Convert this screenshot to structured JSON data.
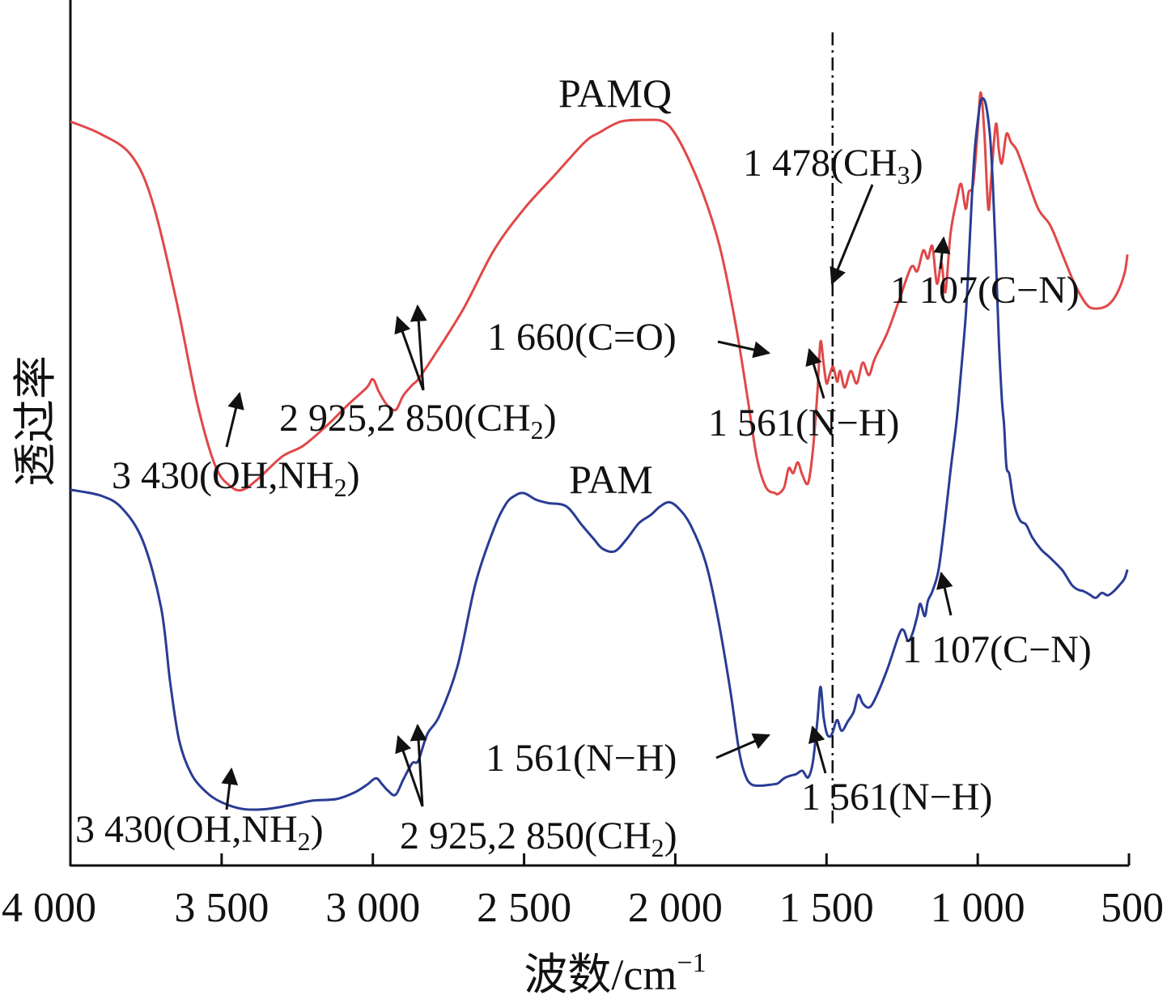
{
  "chart_data": {
    "type": "line",
    "xlabel": "波数/cm",
    "xlabel_sup": "−1",
    "ylabel": "透过率",
    "xlim": [
      4000,
      500
    ],
    "x_ticks": [
      "4 000",
      "3 500",
      "3 000",
      "2 500",
      "2 000",
      "1 500",
      "1 000",
      "500"
    ],
    "x_tick_values": [
      4000,
      3500,
      3000,
      2500,
      2000,
      1500,
      1000,
      500
    ],
    "y_ticks_shown": false,
    "reference_line_x": 1480,
    "series": [
      {
        "name": "PAMQ",
        "color": "#e04848",
        "points": [
          [
            4000,
            0.895
          ],
          [
            3900,
            0.88
          ],
          [
            3800,
            0.855
          ],
          [
            3730,
            0.8
          ],
          [
            3650,
            0.68
          ],
          [
            3580,
            0.555
          ],
          [
            3520,
            0.48
          ],
          [
            3470,
            0.456
          ],
          [
            3430,
            0.452
          ],
          [
            3380,
            0.465
          ],
          [
            3300,
            0.492
          ],
          [
            3230,
            0.505
          ],
          [
            3150,
            0.53
          ],
          [
            3080,
            0.555
          ],
          [
            3020,
            0.575
          ],
          [
            3000,
            0.585
          ],
          [
            2980,
            0.57
          ],
          [
            2955,
            0.555
          ],
          [
            2925,
            0.548
          ],
          [
            2900,
            0.565
          ],
          [
            2870,
            0.578
          ],
          [
            2850,
            0.585
          ],
          [
            2800,
            0.612
          ],
          [
            2700,
            0.67
          ],
          [
            2600,
            0.74
          ],
          [
            2500,
            0.79
          ],
          [
            2400,
            0.83
          ],
          [
            2300,
            0.87
          ],
          [
            2250,
            0.882
          ],
          [
            2180,
            0.895
          ],
          [
            2100,
            0.897
          ],
          [
            2040,
            0.895
          ],
          [
            2000,
            0.88
          ],
          [
            1950,
            0.845
          ],
          [
            1900,
            0.8
          ],
          [
            1850,
            0.74
          ],
          [
            1800,
            0.65
          ],
          [
            1760,
            0.56
          ],
          [
            1730,
            0.49
          ],
          [
            1700,
            0.455
          ],
          [
            1670,
            0.448
          ],
          [
            1660,
            0.447
          ],
          [
            1640,
            0.455
          ],
          [
            1625,
            0.478
          ],
          [
            1610,
            0.472
          ],
          [
            1595,
            0.485
          ],
          [
            1580,
            0.47
          ],
          [
            1561,
            0.46
          ],
          [
            1545,
            0.5
          ],
          [
            1530,
            0.57
          ],
          [
            1520,
            0.63
          ],
          [
            1510,
            0.605
          ],
          [
            1500,
            0.58
          ],
          [
            1490,
            0.59
          ],
          [
            1478,
            0.6
          ],
          [
            1465,
            0.582
          ],
          [
            1455,
            0.595
          ],
          [
            1440,
            0.575
          ],
          [
            1420,
            0.595
          ],
          [
            1400,
            0.58
          ],
          [
            1380,
            0.605
          ],
          [
            1360,
            0.59
          ],
          [
            1340,
            0.61
          ],
          [
            1300,
            0.64
          ],
          [
            1260,
            0.68
          ],
          [
            1220,
            0.72
          ],
          [
            1200,
            0.715
          ],
          [
            1180,
            0.74
          ],
          [
            1165,
            0.73
          ],
          [
            1150,
            0.745
          ],
          [
            1135,
            0.7
          ],
          [
            1120,
            0.725
          ],
          [
            1107,
            0.69
          ],
          [
            1090,
            0.76
          ],
          [
            1070,
            0.8
          ],
          [
            1055,
            0.82
          ],
          [
            1040,
            0.79
          ],
          [
            1030,
            0.81
          ],
          [
            1015,
            0.82
          ],
          [
            1000,
            0.885
          ],
          [
            990,
            0.93
          ],
          [
            978,
            0.88
          ],
          [
            965,
            0.79
          ],
          [
            955,
            0.83
          ],
          [
            940,
            0.892
          ],
          [
            930,
            0.86
          ],
          [
            920,
            0.845
          ],
          [
            905,
            0.88
          ],
          [
            890,
            0.87
          ],
          [
            870,
            0.86
          ],
          [
            840,
            0.83
          ],
          [
            800,
            0.79
          ],
          [
            760,
            0.77
          ],
          [
            720,
            0.735
          ],
          [
            680,
            0.7
          ],
          [
            640,
            0.675
          ],
          [
            610,
            0.67
          ],
          [
            570,
            0.674
          ],
          [
            540,
            0.688
          ],
          [
            515,
            0.712
          ],
          [
            505,
            0.735
          ]
        ]
      },
      {
        "name": "PAM",
        "color": "#2a3c94",
        "points": [
          [
            4000,
            0.452
          ],
          [
            3900,
            0.445
          ],
          [
            3830,
            0.43
          ],
          [
            3760,
            0.39
          ],
          [
            3700,
            0.31
          ],
          [
            3670,
            0.22
          ],
          [
            3640,
            0.15
          ],
          [
            3600,
            0.11
          ],
          [
            3550,
            0.088
          ],
          [
            3500,
            0.076
          ],
          [
            3430,
            0.068
          ],
          [
            3350,
            0.068
          ],
          [
            3270,
            0.073
          ],
          [
            3200,
            0.078
          ],
          [
            3120,
            0.08
          ],
          [
            3060,
            0.088
          ],
          [
            3020,
            0.097
          ],
          [
            2990,
            0.105
          ],
          [
            2970,
            0.098
          ],
          [
            2950,
            0.09
          ],
          [
            2925,
            0.085
          ],
          [
            2900,
            0.103
          ],
          [
            2870,
            0.123
          ],
          [
            2850,
            0.126
          ],
          [
            2820,
            0.158
          ],
          [
            2780,
            0.18
          ],
          [
            2720,
            0.24
          ],
          [
            2660,
            0.34
          ],
          [
            2600,
            0.405
          ],
          [
            2560,
            0.435
          ],
          [
            2530,
            0.445
          ],
          [
            2500,
            0.448
          ],
          [
            2460,
            0.44
          ],
          [
            2420,
            0.436
          ],
          [
            2360,
            0.432
          ],
          [
            2310,
            0.41
          ],
          [
            2270,
            0.393
          ],
          [
            2240,
            0.381
          ],
          [
            2200,
            0.378
          ],
          [
            2160,
            0.393
          ],
          [
            2120,
            0.412
          ],
          [
            2080,
            0.422
          ],
          [
            2050,
            0.432
          ],
          [
            2020,
            0.437
          ],
          [
            1990,
            0.43
          ],
          [
            1950,
            0.41
          ],
          [
            1900,
            0.365
          ],
          [
            1860,
            0.3
          ],
          [
            1820,
            0.215
          ],
          [
            1790,
            0.14
          ],
          [
            1770,
            0.11
          ],
          [
            1750,
            0.098
          ],
          [
            1720,
            0.096
          ],
          [
            1690,
            0.097
          ],
          [
            1670,
            0.098
          ],
          [
            1660,
            0.099
          ],
          [
            1640,
            0.105
          ],
          [
            1620,
            0.108
          ],
          [
            1600,
            0.11
          ],
          [
            1580,
            0.114
          ],
          [
            1561,
            0.106
          ],
          [
            1545,
            0.125
          ],
          [
            1530,
            0.175
          ],
          [
            1520,
            0.215
          ],
          [
            1510,
            0.18
          ],
          [
            1500,
            0.16
          ],
          [
            1490,
            0.155
          ],
          [
            1480,
            0.16
          ],
          [
            1465,
            0.175
          ],
          [
            1450,
            0.162
          ],
          [
            1430,
            0.173
          ],
          [
            1410,
            0.185
          ],
          [
            1395,
            0.205
          ],
          [
            1380,
            0.195
          ],
          [
            1360,
            0.19
          ],
          [
            1340,
            0.2
          ],
          [
            1300,
            0.235
          ],
          [
            1260,
            0.278
          ],
          [
            1245,
            0.283
          ],
          [
            1230,
            0.27
          ],
          [
            1215,
            0.28
          ],
          [
            1200,
            0.3
          ],
          [
            1190,
            0.315
          ],
          [
            1175,
            0.3
          ],
          [
            1165,
            0.318
          ],
          [
            1150,
            0.33
          ],
          [
            1130,
            0.355
          ],
          [
            1110,
            0.41
          ],
          [
            1090,
            0.475
          ],
          [
            1070,
            0.535
          ],
          [
            1055,
            0.595
          ],
          [
            1040,
            0.66
          ],
          [
            1030,
            0.725
          ],
          [
            1020,
            0.8
          ],
          [
            1010,
            0.86
          ],
          [
            1000,
            0.895
          ],
          [
            990,
            0.92
          ],
          [
            975,
            0.918
          ],
          [
            960,
            0.88
          ],
          [
            950,
            0.82
          ],
          [
            940,
            0.73
          ],
          [
            930,
            0.63
          ],
          [
            920,
            0.56
          ],
          [
            913,
            0.53
          ],
          [
            905,
            0.48
          ],
          [
            895,
            0.47
          ],
          [
            880,
            0.435
          ],
          [
            860,
            0.415
          ],
          [
            840,
            0.41
          ],
          [
            820,
            0.395
          ],
          [
            790,
            0.38
          ],
          [
            760,
            0.37
          ],
          [
            720,
            0.355
          ],
          [
            690,
            0.338
          ],
          [
            670,
            0.332
          ],
          [
            650,
            0.33
          ],
          [
            630,
            0.326
          ],
          [
            610,
            0.322
          ],
          [
            590,
            0.328
          ],
          [
            570,
            0.325
          ],
          [
            550,
            0.33
          ],
          [
            530,
            0.338
          ],
          [
            515,
            0.345
          ],
          [
            505,
            0.356
          ]
        ]
      }
    ],
    "annotations": [
      {
        "series": "PAMQ",
        "label": "3 430(OH,NH",
        "sub": "2",
        "tail": ")",
        "at": 3430
      },
      {
        "series": "PAMQ",
        "label": "2 925,2 850(CH",
        "sub": "2",
        "tail": ")",
        "at": [
          2925,
          2850
        ]
      },
      {
        "series": "PAMQ",
        "label": "1 660(C=O)",
        "at": 1660
      },
      {
        "series": "PAMQ",
        "label": "1 561(N−H)",
        "at": 1561
      },
      {
        "series": "PAMQ",
        "label": "1 478(CH",
        "sub": "3",
        "tail": ")",
        "at": 1478
      },
      {
        "series": "PAMQ",
        "label": "1 107(C−N)",
        "at": 1107
      },
      {
        "series": "PAM",
        "label": "3 430(OH,NH",
        "sub": "2",
        "tail": ")",
        "at": 3430
      },
      {
        "series": "PAM",
        "label": "2 925,2 850(CH",
        "sub": "2",
        "tail": ")",
        "at": [
          2925,
          2850
        ]
      },
      {
        "series": "PAM",
        "label": "1 660(C=O)",
        "at": 1660
      },
      {
        "series": "PAM",
        "label": "1 561(N−H)",
        "at": 1561
      },
      {
        "series": "PAM",
        "label": "1 107(C−N)",
        "at": 1107
      }
    ]
  }
}
